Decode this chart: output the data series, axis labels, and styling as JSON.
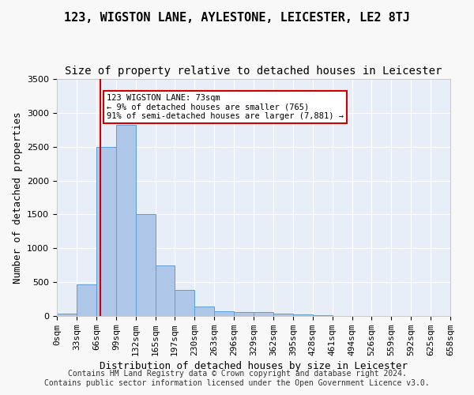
{
  "title": "123, WIGSTON LANE, AYLESTONE, LEICESTER, LE2 8TJ",
  "subtitle": "Size of property relative to detached houses in Leicester",
  "xlabel": "Distribution of detached houses by size in Leicester",
  "ylabel": "Number of detached properties",
  "bin_edges": [
    0,
    33,
    66,
    99,
    132,
    165,
    197,
    230,
    263,
    296,
    329,
    362,
    395,
    428,
    461,
    494,
    526,
    559,
    592,
    625,
    658
  ],
  "bar_heights": [
    30,
    470,
    2500,
    2820,
    1510,
    750,
    390,
    140,
    75,
    55,
    55,
    30,
    20,
    10,
    5,
    3,
    2,
    1,
    1,
    1
  ],
  "bar_color": "#aec6e8",
  "bar_edgecolor": "#5a9fd4",
  "property_size": 73,
  "vline_color": "#cc0000",
  "annotation_text": "123 WIGSTON LANE: 73sqm\n← 9% of detached houses are smaller (765)\n91% of semi-detached houses are larger (7,881) →",
  "annotation_box_color": "#ffffff",
  "annotation_box_edgecolor": "#cc0000",
  "ylim": [
    0,
    3500
  ],
  "yticks": [
    0,
    500,
    1000,
    1500,
    2000,
    2500,
    3000,
    3500
  ],
  "tick_labels": [
    "0sqm",
    "33sqm",
    "66sqm",
    "99sqm",
    "132sqm",
    "165sqm",
    "197sqm",
    "230sqm",
    "263sqm",
    "296sqm",
    "329sqm",
    "362sqm",
    "395sqm",
    "428sqm",
    "461sqm",
    "494sqm",
    "526sqm",
    "559sqm",
    "592sqm",
    "625sqm",
    "658sqm"
  ],
  "footer_line1": "Contains HM Land Registry data © Crown copyright and database right 2024.",
  "footer_line2": "Contains public sector information licensed under the Open Government Licence v3.0.",
  "background_color": "#e8eef8",
  "grid_color": "#ffffff",
  "title_fontsize": 11,
  "subtitle_fontsize": 10,
  "axis_label_fontsize": 9,
  "tick_fontsize": 8,
  "footer_fontsize": 7
}
